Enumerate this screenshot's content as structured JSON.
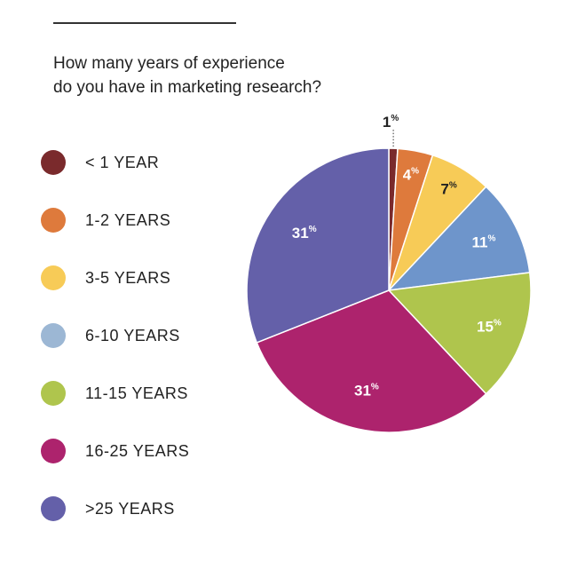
{
  "question": {
    "line1": "How many years of experience",
    "line2": "do you have in marketing research?"
  },
  "chart_data": {
    "type": "pie",
    "unit": "%",
    "categories": [
      "< 1 YEAR",
      "1-2 YEARS",
      "3-5 YEARS",
      "6-10 YEARS",
      "11-15 YEARS",
      "16-25 YEARS",
      ">25 YEARS"
    ],
    "values": [
      1,
      4,
      7,
      11,
      15,
      31,
      31
    ],
    "colors": [
      "#7a2a2c",
      "#de7a3c",
      "#f7cb57",
      "#6e95cb",
      "#afc54d",
      "#ad236d",
      "#6460a9"
    ],
    "legend_colors": [
      "#7a2a2c",
      "#de7a3c",
      "#f7cb57",
      "#9cb7d4",
      "#afc54d",
      "#ad236d",
      "#6460a9"
    ]
  }
}
